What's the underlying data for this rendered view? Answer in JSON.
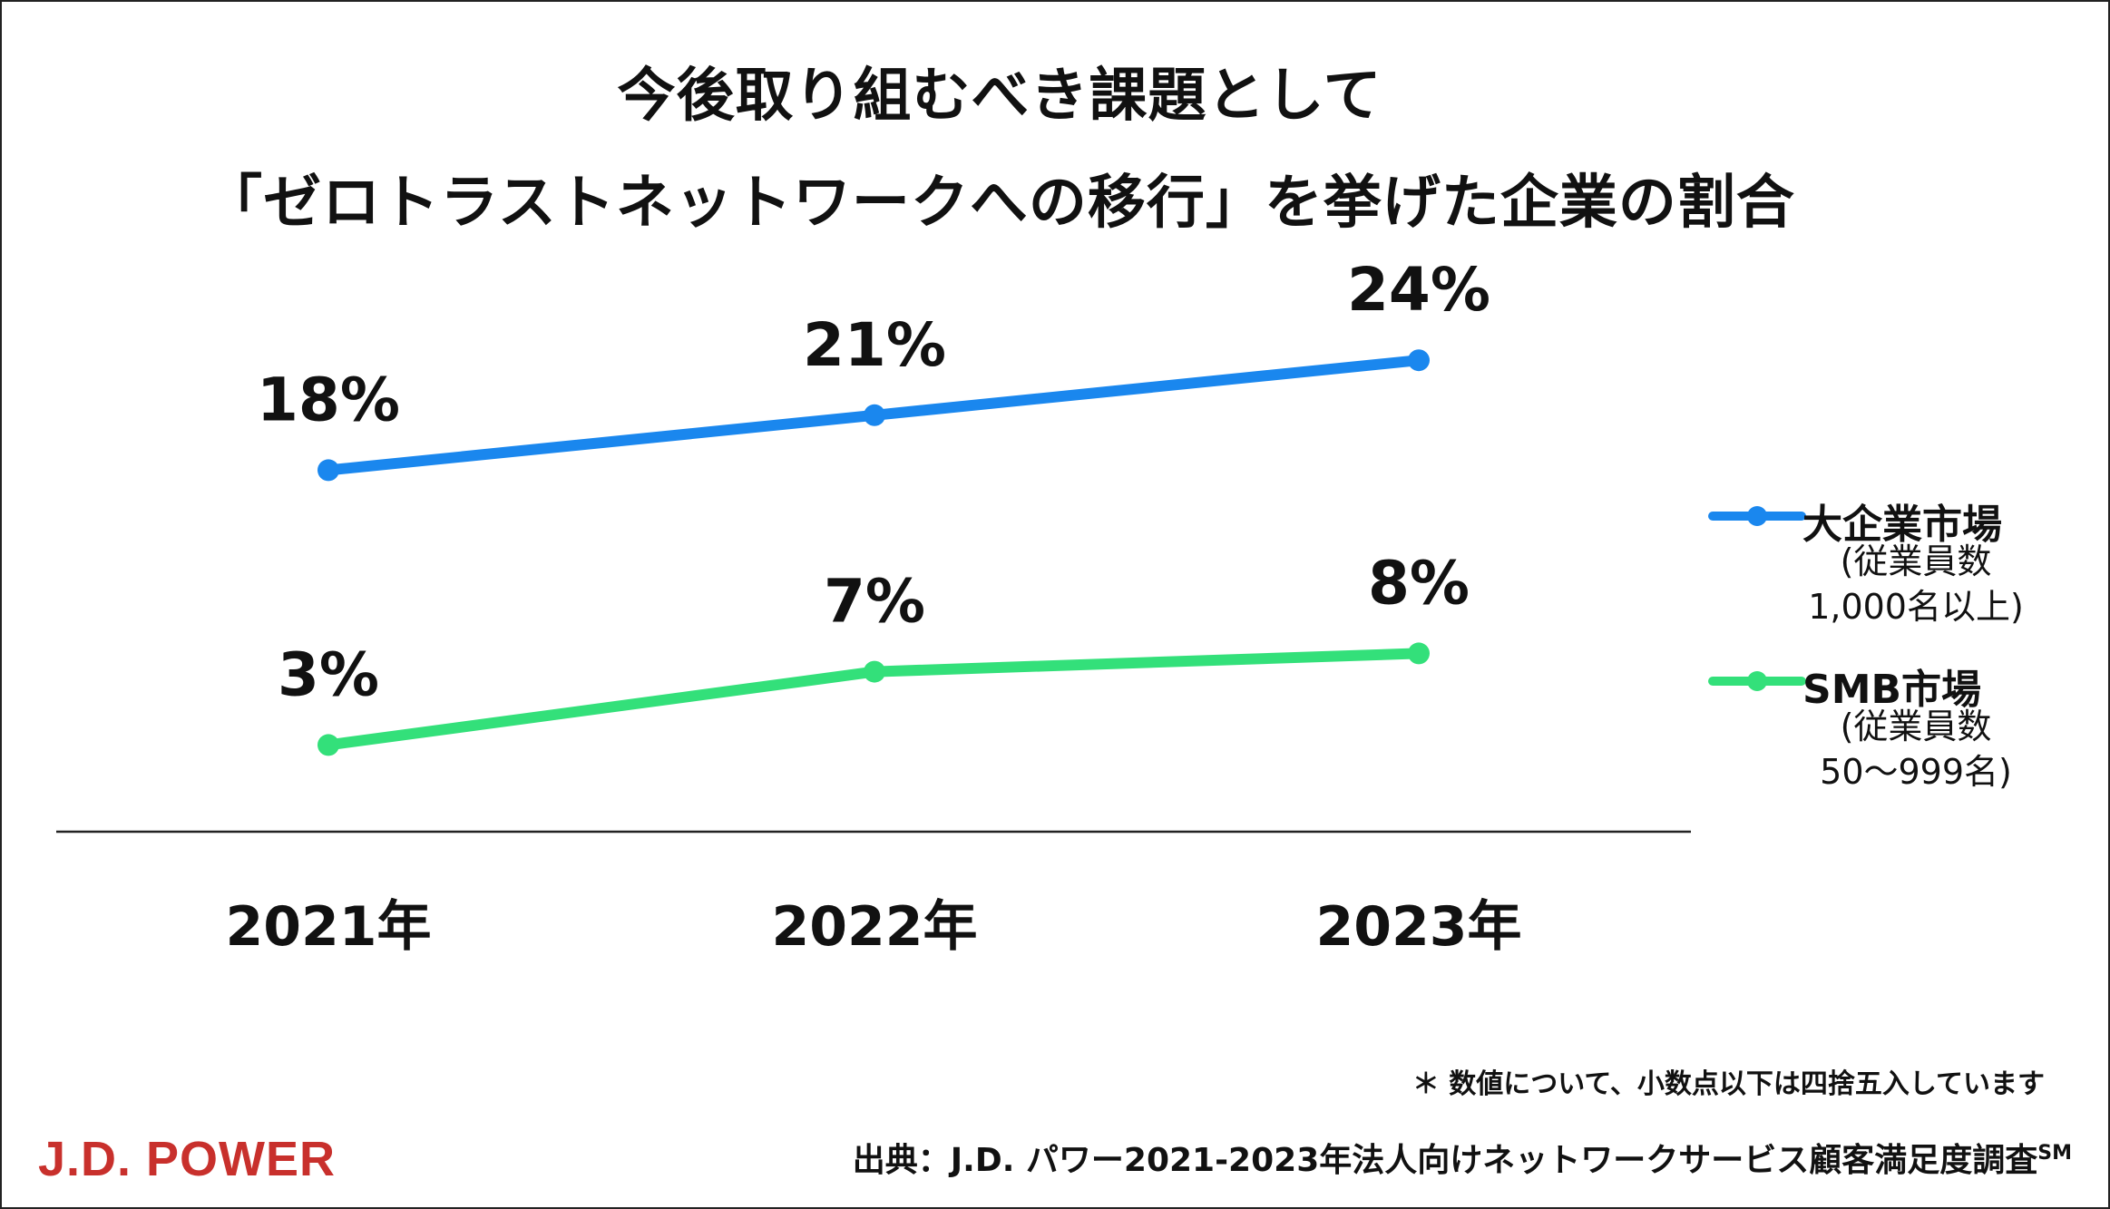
{
  "title": {
    "line1": "今後取り組むべき課題として",
    "line2": "「ゼロトラストネットワークへの移行」を挙げた企業の割合"
  },
  "chart_data": {
    "type": "line",
    "categories": [
      "2021年",
      "2022年",
      "2023年"
    ],
    "series": [
      {
        "name": "大企業市場",
        "subtitle_line1": "(従業員数",
        "subtitle_line2": "1,000名以上)",
        "values": [
          18,
          21,
          24
        ],
        "labels": [
          "18%",
          "21%",
          "24%"
        ],
        "color": "#1a87ee"
      },
      {
        "name": "SMB市場",
        "subtitle_line1": "(従業員数",
        "subtitle_line2": "50～999名)",
        "values": [
          3,
          7,
          8
        ],
        "labels": [
          "3%",
          "7%",
          "8%"
        ],
        "color": "#33e07a"
      }
    ],
    "ylim": [
      0,
      30
    ],
    "grid": false,
    "legend_position": "right"
  },
  "footnote": "＊ 数値について、小数点以下は四捨五入しています",
  "source": {
    "text": "出典：J.D. パワー2021-2023年法人向けネットワークサービス顧客満足度調査",
    "mark": "SM"
  },
  "brand": {
    "logo_text": "J.D. POWER",
    "logo_color": "#c8302c"
  }
}
